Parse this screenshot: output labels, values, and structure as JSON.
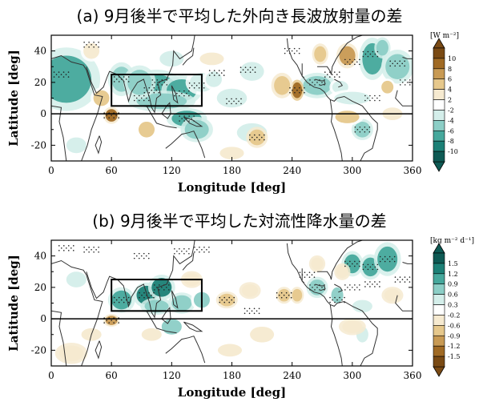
{
  "chart_data": [
    {
      "type": "heatmap",
      "title": "(a) 9月後半で平均した外向き長波放射量の差",
      "xlabel": "Longitude [deg]",
      "ylabel": "Latitude [deg]",
      "xlim": [
        0,
        360
      ],
      "ylim": [
        -30,
        50
      ],
      "xticks": [
        "0",
        "60",
        "120",
        "180",
        "240",
        "300",
        "360"
      ],
      "yticks": [
        "-20",
        "0",
        "20",
        "40"
      ],
      "colorbar_unit": "[W m⁻²]",
      "colorbar_levels": [
        "10",
        "8",
        "6",
        "4",
        "2",
        "-2",
        "-4",
        "-6",
        "-8",
        "-10"
      ],
      "colorbar_colors": [
        "#7a4a14",
        "#a06a24",
        "#c89a54",
        "#e6c88c",
        "#f6ead0",
        "#ffffff",
        "#d4eeea",
        "#8ccec6",
        "#46a89c",
        "#1c8076",
        "#0e5a54"
      ],
      "highlight_box": {
        "lon": [
          60,
          150
        ],
        "lat": [
          5,
          25
        ]
      },
      "grid": false
    },
    {
      "type": "heatmap",
      "title": "(b) 9月後半で平均した対流性降水量の差",
      "xlabel": "Longitude [deg]",
      "ylabel": "Latitude [deg]",
      "xlim": [
        0,
        360
      ],
      "ylim": [
        -30,
        50
      ],
      "xticks": [
        "0",
        "60",
        "120",
        "180",
        "240",
        "300",
        "360"
      ],
      "yticks": [
        "-20",
        "0",
        "20",
        "40"
      ],
      "colorbar_unit": "[kg m⁻² d⁻¹]",
      "colorbar_levels": [
        "1.5",
        "1.2",
        "0.9",
        "0.6",
        "0.3",
        "-0.2",
        "-0.6",
        "-0.9",
        "-1.2",
        "-1.5"
      ],
      "colorbar_colors": [
        "#0e5a54",
        "#1c8076",
        "#46a89c",
        "#8ccec6",
        "#d4eeea",
        "#ffffff",
        "#f6ead0",
        "#e6c88c",
        "#c89a54",
        "#a06a24",
        "#7a4a14"
      ],
      "highlight_box": {
        "lon": [
          60,
          150
        ],
        "lat": [
          5,
          25
        ]
      },
      "grid": false
    }
  ]
}
